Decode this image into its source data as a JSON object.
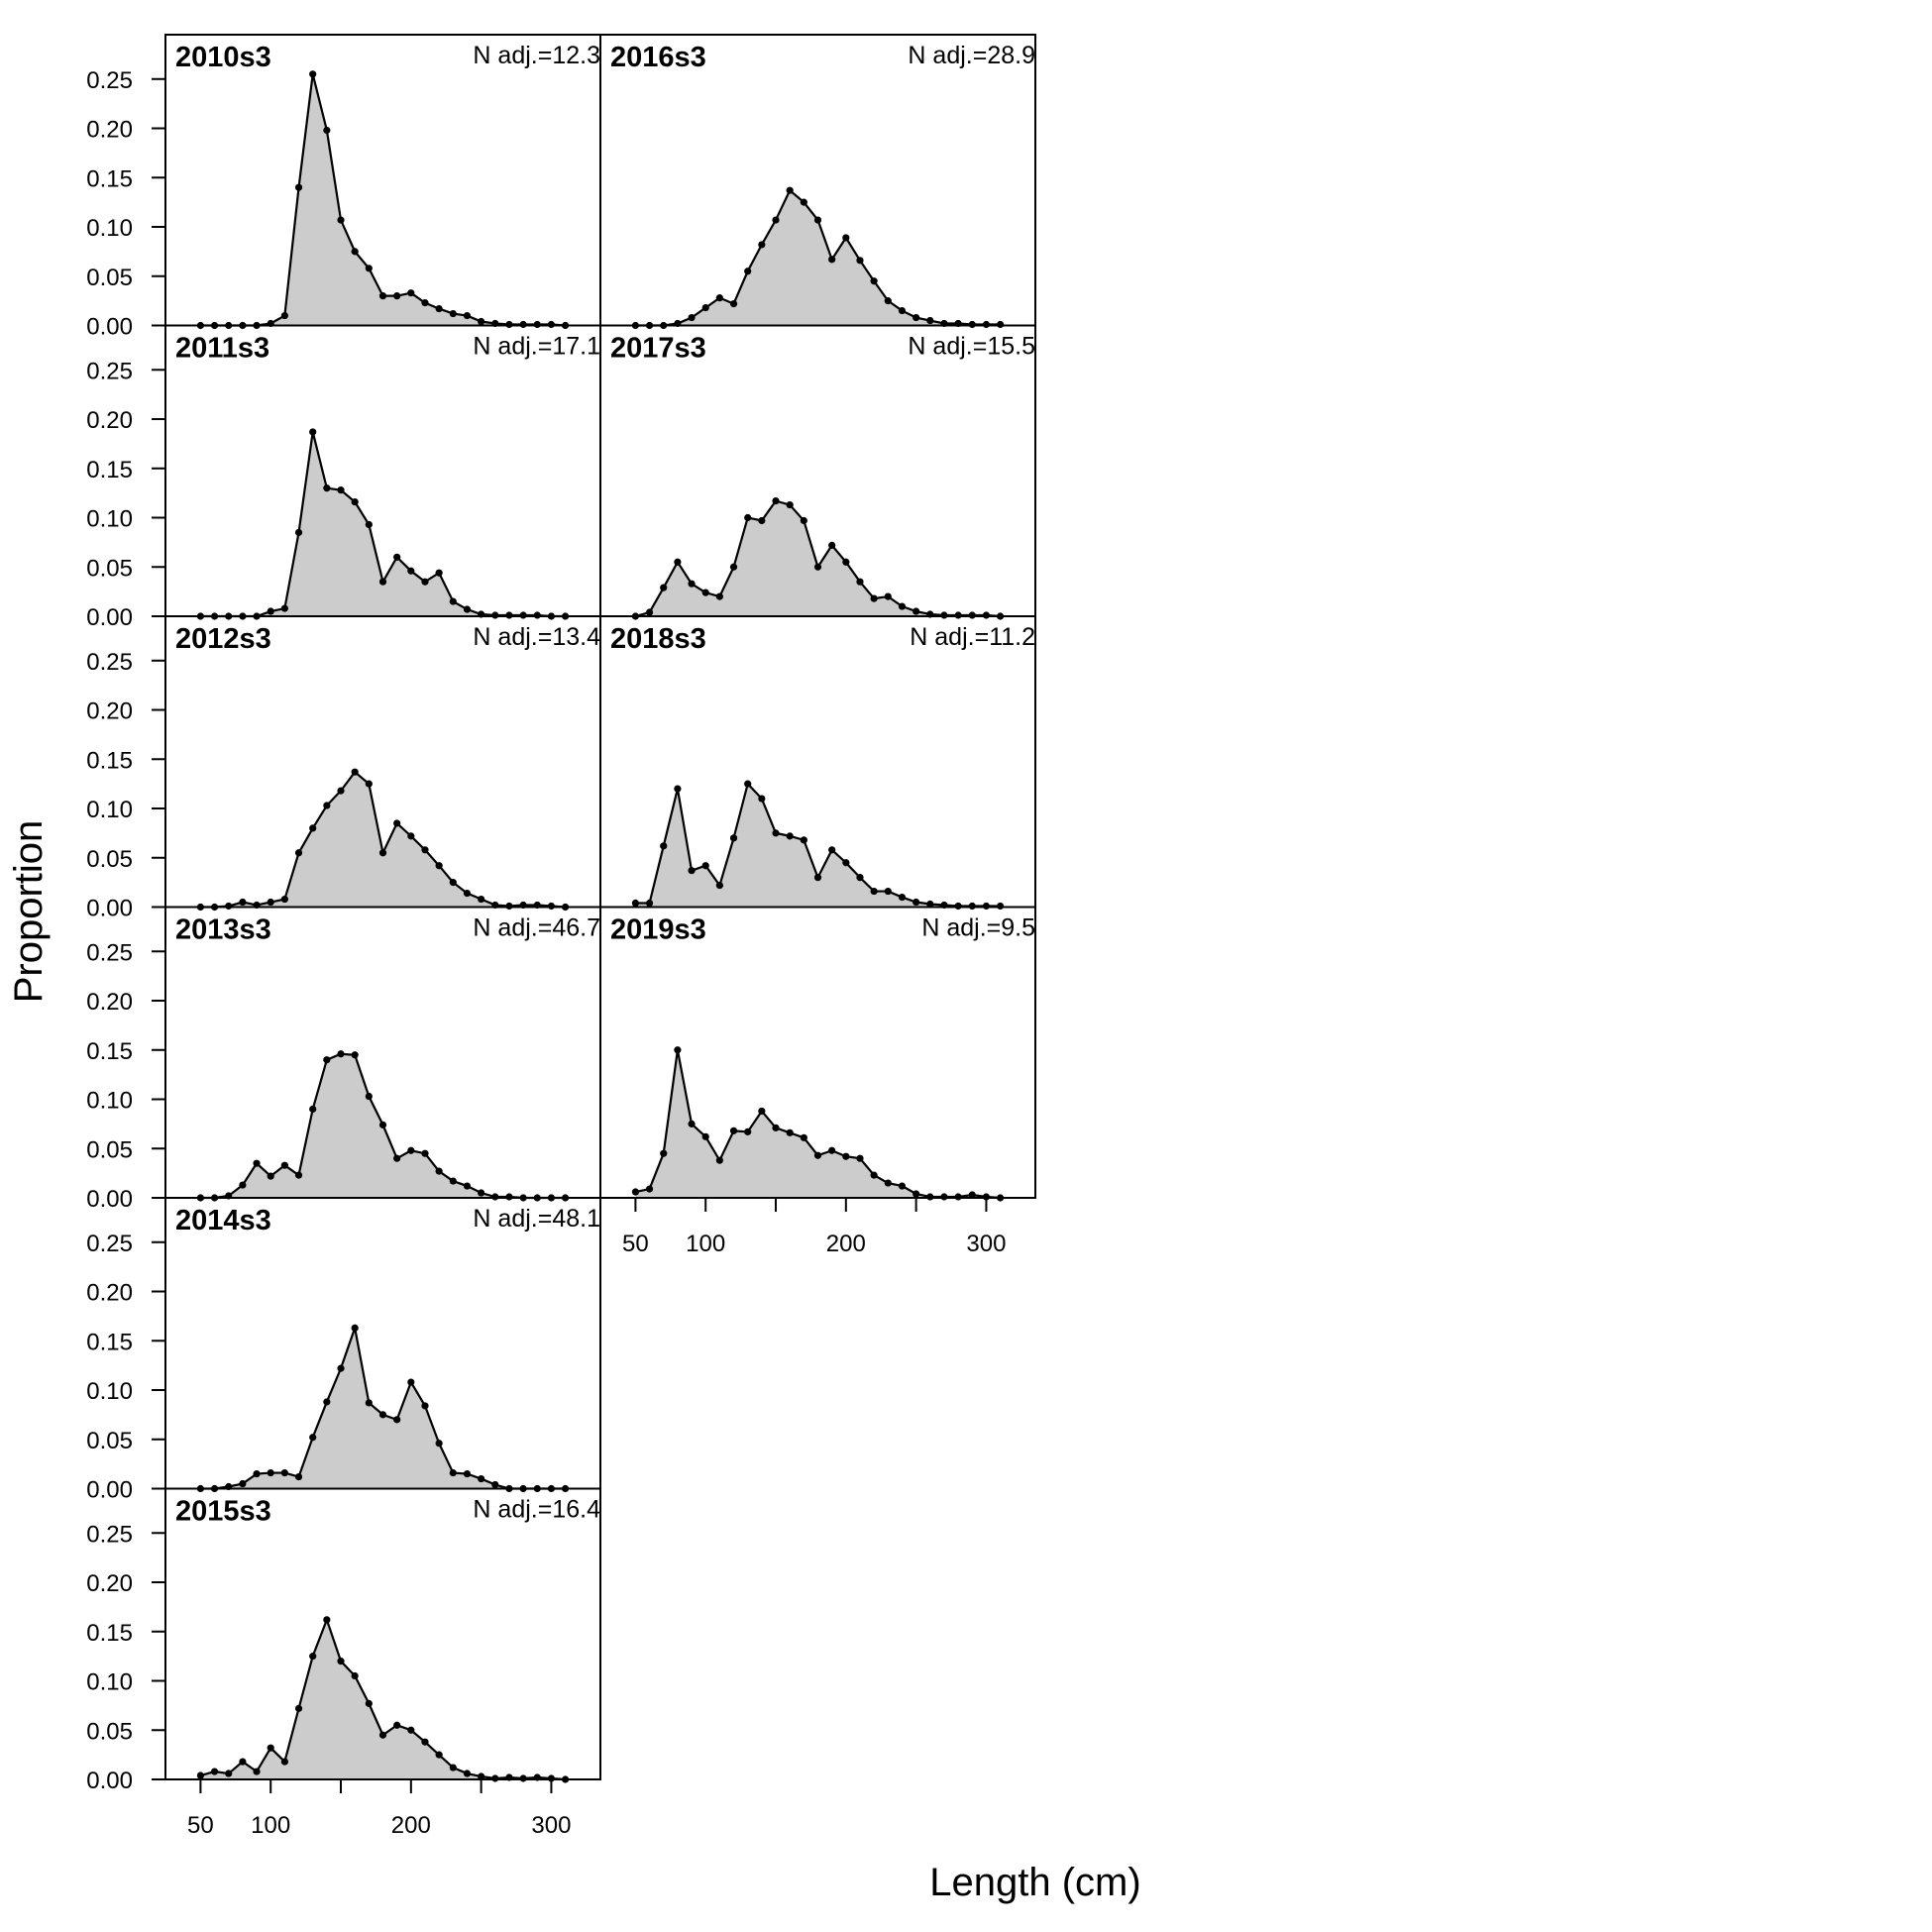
{
  "figure": {
    "ylabel": "Proportion",
    "xlabel": "Length (cm)"
  },
  "chart_data": {
    "type": "area",
    "xlabel": "Length (cm)",
    "ylabel": "Proportion",
    "xlim": [
      25,
      335
    ],
    "ylim": [
      0,
      0.295
    ],
    "xticks": [
      50,
      100,
      200,
      300
    ],
    "xticks_unlabeled": [
      150,
      250
    ],
    "yticks": [
      "0.00",
      "0.05",
      "0.10",
      "0.15",
      "0.20",
      "0.25"
    ],
    "x": [
      50,
      60,
      70,
      80,
      90,
      100,
      110,
      120,
      130,
      140,
      150,
      160,
      170,
      180,
      190,
      200,
      210,
      220,
      230,
      240,
      250,
      260,
      270,
      280,
      290,
      300,
      310
    ],
    "panels": [
      {
        "title": "2010s3",
        "n_adj": "N adj.=12.3",
        "values": [
          0,
          0,
          0,
          0,
          0,
          0.002,
          0.01,
          0.14,
          0.255,
          0.198,
          0.107,
          0.075,
          0.058,
          0.03,
          0.03,
          0.033,
          0.023,
          0.017,
          0.012,
          0.01,
          0.004,
          0.002,
          0.001,
          0.001,
          0.001,
          0.001,
          0
        ]
      },
      {
        "title": "2011s3",
        "n_adj": "N adj.=17.1",
        "values": [
          0,
          0,
          0,
          0,
          0,
          0.005,
          0.008,
          0.085,
          0.187,
          0.13,
          0.128,
          0.116,
          0.093,
          0.035,
          0.06,
          0.046,
          0.035,
          0.044,
          0.015,
          0.007,
          0.002,
          0.001,
          0.001,
          0.001,
          0.001,
          0,
          0
        ]
      },
      {
        "title": "2012s3",
        "n_adj": "N adj.=13.4",
        "values": [
          0,
          0,
          0.001,
          0.005,
          0.002,
          0.005,
          0.008,
          0.055,
          0.08,
          0.103,
          0.118,
          0.137,
          0.125,
          0.055,
          0.085,
          0.072,
          0.058,
          0.042,
          0.025,
          0.014,
          0.008,
          0.002,
          0.001,
          0.002,
          0.002,
          0.001,
          0
        ]
      },
      {
        "title": "2013s3",
        "n_adj": "N adj.=46.7",
        "values": [
          0,
          0,
          0.002,
          0.013,
          0.035,
          0.022,
          0.033,
          0.023,
          0.09,
          0.14,
          0.146,
          0.145,
          0.103,
          0.074,
          0.04,
          0.048,
          0.045,
          0.027,
          0.017,
          0.012,
          0.005,
          0.001,
          0.001,
          0,
          0,
          0,
          0
        ]
      },
      {
        "title": "2014s3",
        "n_adj": "N adj.=48.1",
        "values": [
          0,
          0,
          0.002,
          0.005,
          0.015,
          0.016,
          0.016,
          0.012,
          0.052,
          0.088,
          0.122,
          0.163,
          0.087,
          0.075,
          0.07,
          0.108,
          0.084,
          0.046,
          0.016,
          0.015,
          0.01,
          0.004,
          0,
          0,
          0,
          0,
          0
        ]
      },
      {
        "title": "2015s3",
        "n_adj": "N adj.=16.4",
        "values": [
          0.004,
          0.008,
          0.006,
          0.018,
          0.008,
          0.032,
          0.018,
          0.072,
          0.125,
          0.162,
          0.12,
          0.105,
          0.077,
          0.045,
          0.055,
          0.05,
          0.038,
          0.025,
          0.012,
          0.006,
          0.003,
          0.001,
          0.002,
          0.001,
          0.002,
          0.001,
          0
        ]
      },
      {
        "title": "2016s3",
        "n_adj": "N adj.=28.9",
        "values": [
          0,
          0,
          0,
          0.002,
          0.008,
          0.018,
          0.028,
          0.022,
          0.055,
          0.082,
          0.107,
          0.137,
          0.125,
          0.107,
          0.067,
          0.089,
          0.066,
          0.045,
          0.025,
          0.015,
          0.008,
          0.005,
          0.002,
          0.002,
          0.001,
          0.001,
          0.001
        ]
      },
      {
        "title": "2017s3",
        "n_adj": "N adj.=15.5",
        "values": [
          0,
          0.004,
          0.029,
          0.055,
          0.033,
          0.024,
          0.02,
          0.05,
          0.1,
          0.097,
          0.117,
          0.113,
          0.097,
          0.05,
          0.072,
          0.055,
          0.035,
          0.018,
          0.02,
          0.01,
          0.005,
          0.002,
          0.001,
          0.001,
          0.001,
          0.001,
          0
        ]
      },
      {
        "title": "2018s3",
        "n_adj": "N adj.=11.2",
        "values": [
          0.004,
          0.004,
          0.062,
          0.12,
          0.037,
          0.042,
          0.022,
          0.07,
          0.125,
          0.11,
          0.075,
          0.072,
          0.068,
          0.03,
          0.058,
          0.045,
          0.03,
          0.016,
          0.016,
          0.01,
          0.005,
          0.003,
          0.002,
          0.001,
          0.001,
          0.001,
          0.001
        ]
      },
      {
        "title": "2019s3",
        "n_adj": "N adj.=9.5",
        "values": [
          0.006,
          0.009,
          0.045,
          0.15,
          0.075,
          0.062,
          0.038,
          0.068,
          0.067,
          0.088,
          0.071,
          0.066,
          0.061,
          0.043,
          0.048,
          0.042,
          0.04,
          0.023,
          0.015,
          0.012,
          0.004,
          0.001,
          0.001,
          0.001,
          0.003,
          0.001,
          0
        ]
      }
    ]
  }
}
